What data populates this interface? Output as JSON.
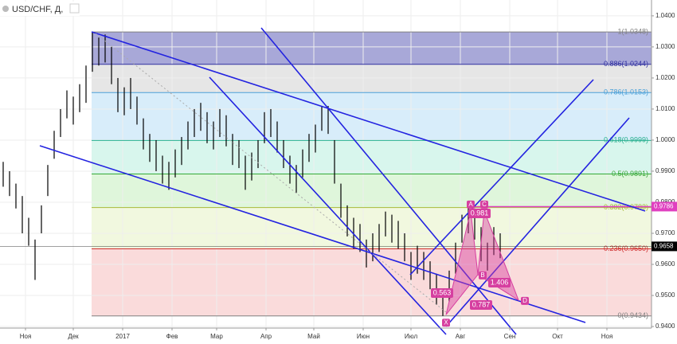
{
  "header": {
    "symbol": "USD/CHF, Д,"
  },
  "chart_data": {
    "type": "ohlc",
    "x": [
      -14,
      -10,
      -6,
      -2,
      2,
      6,
      10,
      14,
      18,
      22,
      26,
      30,
      34,
      38,
      42,
      46,
      50,
      54,
      58,
      62,
      66,
      70,
      74,
      78,
      82,
      86,
      90,
      94,
      98,
      102,
      106,
      110,
      114,
      118,
      122,
      126,
      130,
      134,
      138,
      142,
      146,
      150,
      154,
      158,
      162,
      166,
      170,
      174,
      178,
      182,
      186,
      190,
      194,
      198,
      202,
      206,
      210,
      214,
      218,
      222,
      226,
      230,
      234,
      238,
      242,
      246,
      250,
      254,
      258,
      262,
      266,
      270,
      274,
      278,
      282,
      286,
      290,
      294,
      298
    ],
    "high": [
      0.993,
      0.99,
      0.986,
      0.982,
      0.975,
      0.968,
      0.979,
      0.992,
      1.003,
      1.01,
      1.016,
      1.014,
      1.018,
      1.024,
      1.0348,
      1.033,
      1.034,
      1.03,
      1.02,
      1.017,
      1.02,
      1.014,
      1.007,
      1.002,
      1.0,
      0.995,
      0.993,
      0.997,
      1.001,
      1.006,
      1.01,
      1.012,
      1.009,
      1.006,
      1.01,
      1.008,
      1.002,
      1.0,
      0.995,
      0.996,
      1.0,
      1.009,
      1.01,
      1.006,
      1.0,
      0.995,
      0.992,
      0.997,
      1.002,
      1.005,
      1.011,
      1.011,
      1.0,
      0.986,
      0.979,
      0.975,
      0.973,
      0.968,
      0.97,
      0.973,
      0.977,
      0.976,
      0.974,
      0.97,
      0.964,
      0.966,
      0.964,
      0.961,
      0.957,
      0.951,
      0.958,
      0.967,
      0.976,
      0.9786,
      0.978,
      0.972,
      0.967,
      0.972,
      0.97
    ],
    "low": [
      0.985,
      0.982,
      0.978,
      0.97,
      0.966,
      0.955,
      0.97,
      0.982,
      0.994,
      1.001,
      1.007,
      1.005,
      1.009,
      1.012,
      1.022,
      1.024,
      1.025,
      1.018,
      1.009,
      1.008,
      1.01,
      1.005,
      0.997,
      0.993,
      0.99,
      0.986,
      0.984,
      0.988,
      0.992,
      0.997,
      1.001,
      1.003,
      0.999,
      0.997,
      1.001,
      0.998,
      0.992,
      0.991,
      0.984,
      0.987,
      0.991,
      0.999,
      1.001,
      0.996,
      0.991,
      0.986,
      0.983,
      0.988,
      0.993,
      0.996,
      1.003,
      1.002,
      0.986,
      0.975,
      0.969,
      0.965,
      0.964,
      0.959,
      0.961,
      0.964,
      0.969,
      0.967,
      0.965,
      0.961,
      0.955,
      0.957,
      0.955,
      0.952,
      0.947,
      0.9434,
      0.948,
      0.957,
      0.967,
      0.97,
      0.968,
      0.961,
      0.958,
      0.963,
      0.962
    ],
    "color": "#000000",
    "xlim": [
      -16,
      393
    ],
    "ylim": [
      0.9395,
      1.0451
    ],
    "xticks": [
      {
        "value": 0,
        "label": "Ноя"
      },
      {
        "value": 30,
        "label": "Дек"
      },
      {
        "value": 61,
        "label": "2017"
      },
      {
        "value": 92,
        "label": "Фев"
      },
      {
        "value": 120,
        "label": "Мар"
      },
      {
        "value": 151,
        "label": "Апр"
      },
      {
        "value": 181,
        "label": "Май"
      },
      {
        "value": 212,
        "label": "Июн"
      },
      {
        "value": 242,
        "label": "Июл"
      },
      {
        "value": 273,
        "label": "Авг"
      },
      {
        "value": 304,
        "label": "Сен"
      },
      {
        "value": 334,
        "label": "Окт"
      },
      {
        "value": 365,
        "label": "Ноя"
      }
    ],
    "yticks": [
      {
        "value": 1.04,
        "label": "1.0400"
      },
      {
        "value": 1.03,
        "label": "1.0300"
      },
      {
        "value": 1.02,
        "label": "1.0200"
      },
      {
        "value": 1.01,
        "label": "1.0100"
      },
      {
        "value": 1.0,
        "label": "1.0000"
      },
      {
        "value": 0.99,
        "label": "0.9900"
      },
      {
        "value": 0.98,
        "label": "0.9800"
      },
      {
        "value": 0.97,
        "label": "0.9700"
      },
      {
        "value": 0.96,
        "label": "0.9600"
      },
      {
        "value": 0.95,
        "label": "0.9500"
      },
      {
        "value": 0.94,
        "label": "0.9400"
      }
    ],
    "grid": true,
    "fib_levels": [
      {
        "value": 1.0348,
        "label": "1(1.0348)",
        "color": "#808080",
        "fill": "#3f3fa8"
      },
      {
        "value": 1.0244,
        "label": "0.886(1.0244)",
        "color": "#3030a0",
        "fill": "#c8c8c8"
      },
      {
        "value": 1.0153,
        "label": "0.786(1.0153)",
        "color": "#4aa0d8",
        "fill": "#a8d8f4"
      },
      {
        "value": 0.9999,
        "label": "0.618(0.9999)",
        "color": "#28b090",
        "fill": "#a8ecd8"
      },
      {
        "value": 0.9891,
        "label": "0.5(0.9891)",
        "color": "#38a838",
        "fill": "#b8eab0"
      },
      {
        "value": 0.9783,
        "label": "0.382(0.9783)",
        "color": "#a8b838",
        "fill": "#e0f0b8"
      },
      {
        "value": 0.965,
        "label": "0.236(0.9650)",
        "color": "#d03030",
        "fill": "#f4b0b0"
      },
      {
        "value": 0.9434,
        "label": "0(0.9434)",
        "color": "#808080"
      }
    ],
    "price_labels": [
      {
        "value": 0.9786,
        "label": "0.9786",
        "color": "#e040c0"
      },
      {
        "value": 0.9658,
        "label": "0.9658",
        "color": "#000000"
      }
    ],
    "pattern": {
      "color": "#d63fa0",
      "points": [
        {
          "label": "X",
          "x": 264,
          "y": 0.9438
        },
        {
          "label": "A",
          "x": 279.5,
          "y": 0.9772
        },
        {
          "label": "B",
          "x": 284,
          "y": 0.9567
        },
        {
          "label": "C",
          "x": 288,
          "y": 0.9772
        },
        {
          "label": "D",
          "x": 309.5,
          "y": 0.9485
        }
      ],
      "ratios": [
        0.981,
        0.563,
        1.406,
        0.787
      ]
    }
  }
}
